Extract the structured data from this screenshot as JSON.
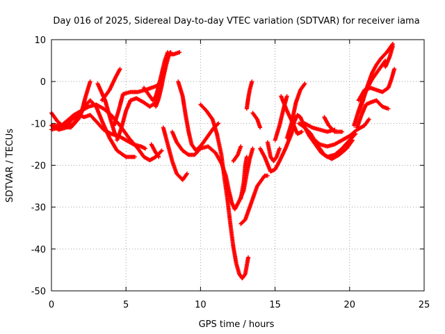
{
  "chart_data": {
    "type": "scatter",
    "title": "Day 016 of 2025, Sidereal Day-to-day VTEC variation (SDTVAR) for receiver iama",
    "xlabel": "GPS time / hours",
    "ylabel": "SDTVAR / TECUs",
    "xlim": [
      0,
      25
    ],
    "ylim": [
      -50,
      10
    ],
    "xticks": [
      0,
      5,
      10,
      15,
      20,
      25
    ],
    "yticks": [
      10,
      0,
      -10,
      -20,
      -30,
      -40,
      -50
    ],
    "grid": true,
    "legend": "none",
    "marker": "+",
    "series_color": "#ff0000",
    "tracks": [
      [
        [
          0.0,
          -7.5
        ],
        [
          0.4,
          -9.5
        ],
        [
          0.8,
          -10.8
        ],
        [
          1.3,
          -11.0
        ],
        [
          1.8,
          -9.0
        ],
        [
          2.2,
          -6.0
        ],
        [
          2.6,
          -4.5
        ],
        [
          3.0,
          -6.0
        ],
        [
          3.4,
          -9.5
        ],
        [
          3.9,
          -13.5
        ],
        [
          4.4,
          -16.5
        ],
        [
          5.0,
          -18.0
        ],
        [
          5.6,
          -18.0
        ]
      ],
      [
        [
          0.0,
          -11.5
        ],
        [
          0.5,
          -11.0
        ],
        [
          1.0,
          -9.5
        ],
        [
          1.5,
          -8.0
        ],
        [
          2.0,
          -7.0
        ],
        [
          2.5,
          -6.0
        ],
        [
          3.0,
          -5.5
        ],
        [
          3.5,
          -6.5
        ],
        [
          4.0,
          -8.0
        ],
        [
          4.6,
          -10.5
        ],
        [
          5.2,
          -13.5
        ],
        [
          5.8,
          -16.0
        ],
        [
          6.2,
          -18.0
        ],
        [
          6.6,
          -18.8
        ],
        [
          7.0,
          -18.0
        ],
        [
          7.4,
          -16.5
        ]
      ],
      [
        [
          0.0,
          -10.5
        ],
        [
          0.5,
          -10.5
        ],
        [
          1.0,
          -10.5
        ],
        [
          1.4,
          -9.0
        ],
        [
          1.8,
          -8.0
        ],
        [
          2.2,
          -8.5
        ],
        [
          2.6,
          -8.0
        ],
        [
          3.0,
          -9.5
        ],
        [
          3.5,
          -11.5
        ],
        [
          4.0,
          -12.5
        ],
        [
          4.5,
          -13.0
        ],
        [
          5.0,
          -14.0
        ],
        [
          5.5,
          -15.0
        ],
        [
          6.0,
          -15.5
        ],
        [
          6.3,
          -16.0
        ]
      ],
      [
        [
          0.0,
          -10.5
        ],
        [
          0.5,
          -11.5
        ],
        [
          1.0,
          -11.0
        ],
        [
          1.5,
          -10.0
        ],
        [
          2.0,
          -7.5
        ],
        [
          2.3,
          -3.5
        ],
        [
          2.6,
          0.0
        ]
      ],
      [
        [
          3.1,
          -0.5
        ],
        [
          3.6,
          -4.5
        ],
        [
          4.0,
          -9.5
        ],
        [
          4.3,
          -13.0
        ]
      ],
      [
        [
          3.4,
          -4.5
        ],
        [
          3.9,
          -2.0
        ],
        [
          4.3,
          1.0
        ],
        [
          4.6,
          3.0
        ]
      ],
      [
        [
          4.4,
          -14.0
        ],
        [
          4.7,
          -11.0
        ],
        [
          5.0,
          -7.0
        ],
        [
          5.3,
          -4.5
        ],
        [
          5.7,
          -4.0
        ],
        [
          6.2,
          -5.0
        ],
        [
          6.6,
          -6.0
        ],
        [
          7.0,
          -5.0
        ],
        [
          7.3,
          -2.0
        ]
      ],
      [
        [
          4.2,
          -10.5
        ],
        [
          4.5,
          -7.0
        ],
        [
          4.8,
          -3.0
        ],
        [
          5.3,
          -2.5
        ],
        [
          5.8,
          -2.5
        ],
        [
          6.3,
          -2.0
        ],
        [
          6.7,
          -1.5
        ],
        [
          7.1,
          -1.0
        ],
        [
          7.5,
          1.0
        ],
        [
          7.7,
          4.0
        ],
        [
          7.9,
          6.5
        ]
      ],
      [
        [
          6.2,
          -1.5
        ],
        [
          6.5,
          -3.0
        ],
        [
          6.8,
          -4.5
        ],
        [
          7.0,
          -3.5
        ],
        [
          7.2,
          -1.0
        ],
        [
          7.4,
          2.0
        ],
        [
          7.6,
          5.0
        ],
        [
          7.8,
          7.0
        ]
      ],
      [
        [
          7.0,
          -6.0
        ],
        [
          7.2,
          -4.0
        ],
        [
          7.4,
          -1.0
        ],
        [
          7.6,
          3.0
        ],
        [
          7.8,
          6.5
        ],
        [
          8.0,
          7.0
        ]
      ],
      [
        [
          7.8,
          6.5
        ],
        [
          8.2,
          6.5
        ],
        [
          8.6,
          7.0
        ]
      ],
      [
        [
          6.7,
          -15.0
        ],
        [
          7.0,
          -17.0
        ],
        [
          7.2,
          -18.0
        ]
      ],
      [
        [
          7.5,
          -11.0
        ],
        [
          7.8,
          -15.0
        ],
        [
          8.1,
          -19.0
        ],
        [
          8.4,
          -22.0
        ],
        [
          8.8,
          -23.5
        ],
        [
          9.1,
          -22.0
        ]
      ],
      [
        [
          8.5,
          0.0
        ],
        [
          8.8,
          -3.5
        ],
        [
          9.0,
          -8.0
        ],
        [
          9.2,
          -12.0
        ],
        [
          9.4,
          -15.0
        ],
        [
          9.7,
          -16.5
        ],
        [
          10.1,
          -15.0
        ],
        [
          10.5,
          -13.0
        ],
        [
          10.9,
          -11.0
        ],
        [
          11.2,
          -10.0
        ]
      ],
      [
        [
          8.1,
          -12.0
        ],
        [
          8.4,
          -14.5
        ],
        [
          8.8,
          -16.5
        ],
        [
          9.2,
          -17.5
        ],
        [
          9.6,
          -17.5
        ],
        [
          10.0,
          -16.0
        ],
        [
          10.5,
          -15.5
        ],
        [
          11.0,
          -17.0
        ],
        [
          11.4,
          -19.5
        ],
        [
          11.7,
          -22.5
        ],
        [
          11.9,
          -26.0
        ],
        [
          12.1,
          -29.0
        ],
        [
          12.3,
          -30.5
        ],
        [
          12.6,
          -28.5
        ],
        [
          12.9,
          -26.0
        ],
        [
          13.1,
          -22.0
        ],
        [
          13.3,
          -18.5
        ],
        [
          13.5,
          -16.0
        ]
      ],
      [
        [
          10.0,
          -5.5
        ],
        [
          10.4,
          -7.0
        ],
        [
          10.8,
          -9.0
        ],
        [
          11.1,
          -12.5
        ],
        [
          11.4,
          -17.5
        ],
        [
          11.6,
          -23.0
        ],
        [
          11.8,
          -28.0
        ],
        [
          12.0,
          -34.0
        ],
        [
          12.2,
          -39.5
        ],
        [
          12.4,
          -43.5
        ],
        [
          12.6,
          -46.0
        ],
        [
          12.8,
          -47.0
        ],
        [
          13.0,
          -46.0
        ],
        [
          13.2,
          -42.0
        ]
      ],
      [
        [
          12.7,
          -28.0
        ],
        [
          12.9,
          -24.0
        ],
        [
          13.0,
          -20.0
        ],
        [
          13.1,
          -18.0
        ]
      ],
      [
        [
          12.2,
          -19.0
        ],
        [
          12.5,
          -17.5
        ],
        [
          12.7,
          -15.5
        ]
      ],
      [
        [
          13.1,
          -6.5
        ],
        [
          13.2,
          -4.0
        ],
        [
          13.3,
          -2.0
        ],
        [
          13.45,
          0.0
        ]
      ],
      [
        [
          13.5,
          -7.5
        ],
        [
          13.8,
          -9.0
        ],
        [
          14.0,
          -11.0
        ]
      ],
      [
        [
          12.7,
          -34.0
        ],
        [
          13.0,
          -33.0
        ],
        [
          13.3,
          -30.0
        ],
        [
          13.6,
          -27.0
        ],
        [
          13.8,
          -25.0
        ],
        [
          14.0,
          -24.0
        ],
        [
          14.3,
          -22.5
        ],
        [
          14.5,
          -22.5
        ]
      ],
      [
        [
          14.5,
          -14.5
        ],
        [
          14.7,
          -18.0
        ],
        [
          14.9,
          -19.0
        ],
        [
          15.1,
          -18.0
        ],
        [
          15.3,
          -16.0
        ]
      ],
      [
        [
          14.0,
          -16.0
        ],
        [
          14.3,
          -18.0
        ],
        [
          14.7,
          -21.5
        ],
        [
          15.0,
          -21.0
        ],
        [
          15.3,
          -19.0
        ],
        [
          15.7,
          -16.0
        ],
        [
          16.1,
          -12.5
        ],
        [
          16.3,
          -9.5
        ],
        [
          16.5,
          -8.0
        ],
        [
          16.7,
          -8.5
        ],
        [
          17.0,
          -11.0
        ],
        [
          17.3,
          -13.0
        ],
        [
          17.7,
          -15.0
        ],
        [
          18.1,
          -17.0
        ],
        [
          18.5,
          -18.0
        ],
        [
          19.0,
          -17.5
        ],
        [
          19.5,
          -16.0
        ],
        [
          20.0,
          -14.0
        ],
        [
          20.4,
          -12.5
        ]
      ],
      [
        [
          15.0,
          -14.0
        ],
        [
          15.3,
          -10.5
        ],
        [
          15.6,
          -6.0
        ],
        [
          15.8,
          -3.5
        ]
      ],
      [
        [
          15.4,
          -3.5
        ],
        [
          15.8,
          -7.0
        ],
        [
          16.2,
          -10.0
        ],
        [
          16.5,
          -12.5
        ],
        [
          16.8,
          -12.0
        ]
      ],
      [
        [
          15.8,
          -13.5
        ],
        [
          16.1,
          -10.0
        ],
        [
          16.4,
          -5.0
        ],
        [
          16.7,
          -2.0
        ],
        [
          17.0,
          -0.5
        ]
      ],
      [
        [
          16.6,
          -10.0
        ],
        [
          17.0,
          -11.0
        ],
        [
          17.4,
          -12.5
        ],
        [
          17.8,
          -15.0
        ],
        [
          18.3,
          -17.5
        ],
        [
          18.8,
          -18.5
        ],
        [
          19.3,
          -17.5
        ],
        [
          19.8,
          -16.0
        ],
        [
          20.2,
          -14.0
        ]
      ],
      [
        [
          16.9,
          -10.5
        ],
        [
          17.5,
          -13.5
        ],
        [
          18.0,
          -15.0
        ],
        [
          18.5,
          -15.5
        ],
        [
          19.0,
          -15.0
        ],
        [
          19.5,
          -14.0
        ],
        [
          20.0,
          -13.0
        ],
        [
          20.5,
          -11.5
        ],
        [
          21.0,
          -10.5
        ],
        [
          21.3,
          -9.0
        ]
      ],
      [
        [
          17.0,
          -10.0
        ],
        [
          17.5,
          -11.0
        ],
        [
          18.0,
          -11.5
        ],
        [
          18.5,
          -12.0
        ],
        [
          19.0,
          -11.5
        ]
      ],
      [
        [
          18.3,
          -8.5
        ],
        [
          18.6,
          -10.5
        ],
        [
          19.0,
          -12.0
        ],
        [
          19.5,
          -12.0
        ]
      ],
      [
        [
          20.5,
          -11.0
        ],
        [
          20.8,
          -8.0
        ],
        [
          21.1,
          -5.5
        ],
        [
          21.4,
          -5.0
        ],
        [
          21.8,
          -4.5
        ],
        [
          22.2,
          -6.0
        ],
        [
          22.6,
          -6.5
        ]
      ],
      [
        [
          20.3,
          -10.5
        ],
        [
          20.6,
          -7.0
        ],
        [
          20.9,
          -4.0
        ],
        [
          21.2,
          -1.5
        ],
        [
          21.5,
          0.5
        ],
        [
          21.8,
          2.0
        ],
        [
          22.1,
          3.5
        ],
        [
          22.4,
          5.0
        ]
      ],
      [
        [
          20.6,
          -7.5
        ],
        [
          20.9,
          -4.5
        ],
        [
          21.2,
          -1.0
        ],
        [
          21.5,
          2.0
        ],
        [
          21.8,
          4.0
        ],
        [
          22.1,
          5.5
        ],
        [
          22.5,
          7.0
        ],
        [
          22.9,
          9.0
        ]
      ],
      [
        [
          20.6,
          -4.5
        ],
        [
          21.0,
          -2.0
        ],
        [
          21.4,
          -1.5
        ],
        [
          21.8,
          -2.0
        ],
        [
          22.2,
          -2.5
        ],
        [
          22.6,
          -1.5
        ],
        [
          22.8,
          0.5
        ],
        [
          23.0,
          3.0
        ]
      ],
      [
        [
          22.4,
          3.5
        ],
        [
          22.7,
          6.0
        ],
        [
          22.9,
          8.5
        ]
      ]
    ]
  }
}
